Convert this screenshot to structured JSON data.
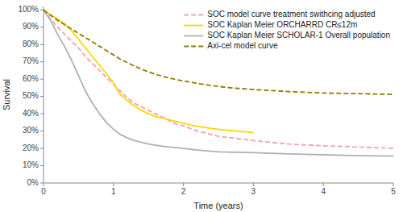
{
  "chart_data": {
    "type": "line",
    "xlabel": "Time (years)",
    "ylabel": "Survival",
    "xlim": [
      0,
      5
    ],
    "ylim": [
      0,
      1.02
    ],
    "xticks": [
      0,
      1,
      2,
      3,
      4,
      5
    ],
    "yticks": [
      {
        "value": 0,
        "label": "0%"
      },
      {
        "value": 0.1,
        "label": "10%"
      },
      {
        "value": 0.2,
        "label": "20%"
      },
      {
        "value": 0.3,
        "label": "30%"
      },
      {
        "value": 0.4,
        "label": "40%"
      },
      {
        "value": 0.5,
        "label": "50%"
      },
      {
        "value": 0.6,
        "label": "60%"
      },
      {
        "value": 0.7,
        "label": "70%"
      },
      {
        "value": 0.8,
        "label": "80%"
      },
      {
        "value": 0.9,
        "label": "90%"
      },
      {
        "value": 1.0,
        "label": "100%"
      }
    ],
    "grid": false,
    "legend": "upper right",
    "series": [
      {
        "name": "SOC model curve treatment swithcing adjusted",
        "color": "#f4a0b5",
        "line_style": "dashed",
        "x": [
          0,
          0.05,
          0.1,
          0.15,
          0.2,
          0.3,
          0.4,
          0.5,
          0.6,
          0.7,
          0.8,
          0.9,
          1.0,
          1.1,
          1.2,
          1.3,
          1.4,
          1.5,
          1.6,
          1.7,
          1.8,
          1.9,
          2.0,
          2.2,
          2.4,
          2.5,
          2.6,
          2.8,
          3.0,
          3.5,
          4.0,
          4.5,
          5.0
        ],
        "values": [
          1.0,
          0.975,
          0.95,
          0.925,
          0.9,
          0.86,
          0.82,
          0.78,
          0.73,
          0.69,
          0.65,
          0.61,
          0.57,
          0.53,
          0.49,
          0.46,
          0.44,
          0.42,
          0.4,
          0.38,
          0.36,
          0.34,
          0.33,
          0.3,
          0.28,
          0.27,
          0.265,
          0.255,
          0.245,
          0.225,
          0.215,
          0.208,
          0.2
        ]
      },
      {
        "name": "SOC Kaplan Meier ORCHARRD CR≤12m",
        "color": "#ffd700",
        "line_style": "solid",
        "x": [
          0,
          0.05,
          0.1,
          0.15,
          0.2,
          0.3,
          0.4,
          0.5,
          0.6,
          0.7,
          0.8,
          0.9,
          1.0,
          1.05,
          1.1,
          1.2,
          1.3,
          1.4,
          1.5,
          1.6,
          1.7,
          1.8,
          1.9,
          2.0,
          2.1,
          2.2,
          2.3,
          2.4,
          2.5,
          2.6,
          2.7,
          2.8,
          2.9,
          3.0
        ],
        "values": [
          1.0,
          0.985,
          0.97,
          0.96,
          0.95,
          0.92,
          0.88,
          0.83,
          0.78,
          0.73,
          0.68,
          0.63,
          0.58,
          0.54,
          0.51,
          0.475,
          0.445,
          0.42,
          0.4,
          0.385,
          0.375,
          0.365,
          0.355,
          0.345,
          0.335,
          0.328,
          0.322,
          0.315,
          0.31,
          0.305,
          0.302,
          0.299,
          0.295,
          0.29
        ]
      },
      {
        "name": "SOC Kaplan Meier SCHOLAR-1 Overall population",
        "color": "#b0b0b0",
        "line_style": "solid",
        "x": [
          0,
          0.05,
          0.1,
          0.15,
          0.2,
          0.3,
          0.4,
          0.5,
          0.6,
          0.7,
          0.8,
          0.9,
          1.0,
          1.1,
          1.2,
          1.3,
          1.4,
          1.5,
          1.6,
          1.7,
          1.8,
          1.9,
          2.0,
          2.2,
          2.5,
          3.0,
          3.5,
          4.0,
          4.5,
          5.0
        ],
        "values": [
          1.0,
          0.97,
          0.94,
          0.9,
          0.86,
          0.79,
          0.71,
          0.62,
          0.53,
          0.46,
          0.4,
          0.35,
          0.31,
          0.28,
          0.26,
          0.245,
          0.235,
          0.225,
          0.218,
          0.212,
          0.208,
          0.204,
          0.2,
          0.19,
          0.18,
          0.175,
          0.168,
          0.163,
          0.158,
          0.155
        ]
      },
      {
        "name": "Axi-cel model curve",
        "color": "#8b8000",
        "line_style": "dashed",
        "x": [
          0,
          0.05,
          0.1,
          0.15,
          0.2,
          0.3,
          0.4,
          0.5,
          0.6,
          0.7,
          0.8,
          0.9,
          1.0,
          1.1,
          1.2,
          1.3,
          1.4,
          1.5,
          1.6,
          1.7,
          1.8,
          1.9,
          2.0,
          2.2,
          2.4,
          2.6,
          2.8,
          3.0,
          3.5,
          4.0,
          4.5,
          5.0
        ],
        "values": [
          1.0,
          0.985,
          0.97,
          0.955,
          0.94,
          0.915,
          0.89,
          0.865,
          0.84,
          0.815,
          0.79,
          0.765,
          0.74,
          0.715,
          0.695,
          0.675,
          0.658,
          0.642,
          0.628,
          0.616,
          0.606,
          0.597,
          0.59,
          0.575,
          0.563,
          0.553,
          0.546,
          0.54,
          0.528,
          0.52,
          0.516,
          0.512
        ]
      }
    ]
  }
}
